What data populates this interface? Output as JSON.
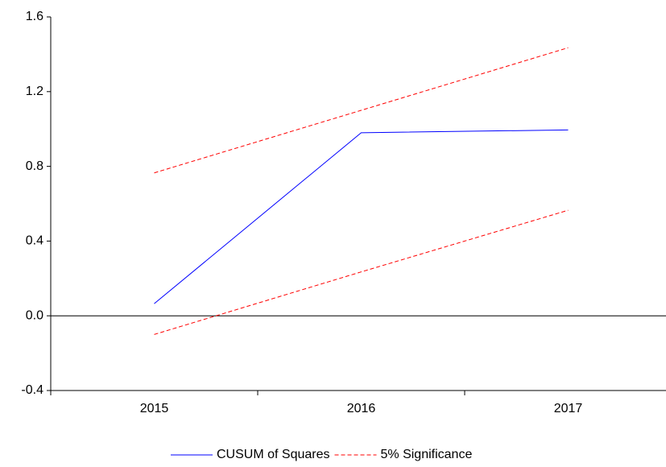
{
  "chart_data": {
    "type": "line",
    "categories": [
      "2015",
      "2016",
      "2017"
    ],
    "series": [
      {
        "name": "CUSUM of Squares",
        "color": "#0000ff",
        "dash": false,
        "values": [
          0.065,
          0.98,
          0.995
        ]
      },
      {
        "name": "5% Significance",
        "color": "#ff0000",
        "dash": true,
        "values": [
          0.765,
          1.1,
          1.435
        ]
      },
      {
        "color": "#ff0000",
        "dash": true,
        "values": [
          -0.1,
          0.235,
          0.565
        ]
      }
    ],
    "ylim": [
      -0.4,
      1.6
    ],
    "yticks": [
      -0.4,
      {
        "value": 0,
        "label": "0.0"
      },
      0.4,
      0.8,
      1.2,
      1.6
    ],
    "legend": "bottom"
  }
}
